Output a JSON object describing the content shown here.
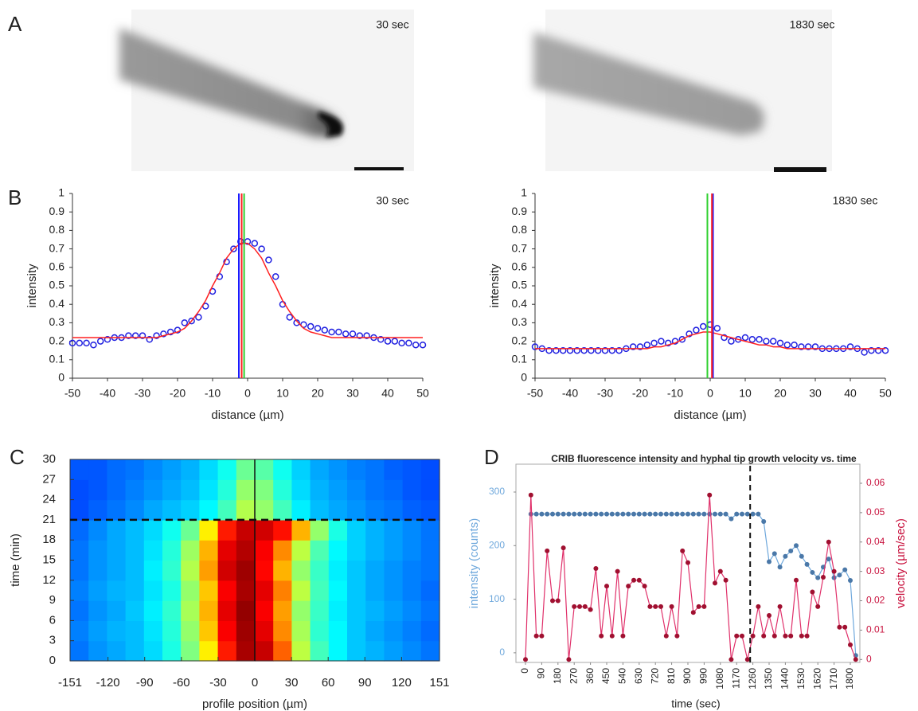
{
  "panel_labels": [
    "A",
    "B",
    "C",
    "D"
  ],
  "images": [
    {
      "label": "30 sec"
    },
    {
      "label": "1830 sec"
    }
  ],
  "chart_data": [
    {
      "type": "line",
      "annotation": "30 sec",
      "xlabel": "distance (µm)",
      "ylabel": "intensity",
      "x": [
        -50,
        -48,
        -46,
        -44,
        -42,
        -40,
        -38,
        -36,
        -34,
        -32,
        -30,
        -28,
        -26,
        -24,
        -22,
        -20,
        -18,
        -16,
        -14,
        -12,
        -10,
        -8,
        -6,
        -4,
        -2,
        0,
        2,
        4,
        6,
        8,
        10,
        12,
        14,
        16,
        18,
        20,
        22,
        24,
        26,
        28,
        30,
        32,
        34,
        36,
        38,
        40,
        42,
        44,
        46,
        48,
        50
      ],
      "series": [
        {
          "color": "#2020e0",
          "style": "markers",
          "values": [
            0.19,
            0.19,
            0.19,
            0.18,
            0.2,
            0.21,
            0.22,
            0.22,
            0.23,
            0.23,
            0.23,
            0.21,
            0.23,
            0.24,
            0.25,
            0.26,
            0.3,
            0.31,
            0.33,
            0.39,
            0.47,
            0.55,
            0.63,
            0.7,
            0.74,
            0.74,
            0.73,
            0.7,
            0.64,
            0.55,
            0.4,
            0.33,
            0.3,
            0.29,
            0.28,
            0.27,
            0.26,
            0.25,
            0.25,
            0.24,
            0.24,
            0.23,
            0.23,
            0.22,
            0.21,
            0.2,
            0.2,
            0.19,
            0.19,
            0.18,
            0.18
          ]
        },
        {
          "color": "#ff2020",
          "style": "line",
          "values": [
            0.22,
            0.22,
            0.22,
            0.22,
            0.22,
            0.22,
            0.22,
            0.22,
            0.22,
            0.22,
            0.22,
            0.22,
            0.22,
            0.23,
            0.24,
            0.25,
            0.27,
            0.31,
            0.36,
            0.42,
            0.5,
            0.57,
            0.65,
            0.7,
            0.73,
            0.73,
            0.7,
            0.65,
            0.57,
            0.5,
            0.42,
            0.36,
            0.31,
            0.27,
            0.25,
            0.24,
            0.23,
            0.22,
            0.22,
            0.22,
            0.22,
            0.22,
            0.22,
            0.22,
            0.22,
            0.22,
            0.22,
            0.22,
            0.22,
            0.22,
            0.22
          ]
        }
      ],
      "vlines": [
        {
          "x": -2.5,
          "color": "#1a1aff"
        },
        {
          "x": -1,
          "color": "#30d030"
        },
        {
          "x": -1.7,
          "color": "#ff2020"
        }
      ],
      "xlim": [
        -50,
        50
      ],
      "xticks": [
        -50,
        -40,
        -30,
        -20,
        -10,
        0,
        10,
        20,
        30,
        40,
        50
      ],
      "ylim": [
        0,
        1
      ],
      "yticks": [
        0,
        0.1,
        0.2,
        0.3,
        0.4,
        0.5,
        0.6,
        0.7,
        0.8,
        0.9,
        1
      ]
    },
    {
      "type": "line",
      "annotation": "1830 sec",
      "xlabel": "distance (µm)",
      "ylabel": "intensity",
      "x": [
        -50,
        -48,
        -46,
        -44,
        -42,
        -40,
        -38,
        -36,
        -34,
        -32,
        -30,
        -28,
        -26,
        -24,
        -22,
        -20,
        -18,
        -16,
        -14,
        -12,
        -10,
        -8,
        -6,
        -4,
        -2,
        0,
        2,
        4,
        6,
        8,
        10,
        12,
        14,
        16,
        18,
        20,
        22,
        24,
        26,
        28,
        30,
        32,
        34,
        36,
        38,
        40,
        42,
        44,
        46,
        48,
        50
      ],
      "series": [
        {
          "color": "#2020e0",
          "style": "markers",
          "values": [
            0.17,
            0.16,
            0.15,
            0.15,
            0.15,
            0.15,
            0.15,
            0.15,
            0.15,
            0.15,
            0.15,
            0.15,
            0.15,
            0.16,
            0.17,
            0.17,
            0.18,
            0.19,
            0.2,
            0.19,
            0.2,
            0.21,
            0.24,
            0.26,
            0.28,
            0.29,
            0.27,
            0.22,
            0.2,
            0.21,
            0.22,
            0.21,
            0.21,
            0.2,
            0.2,
            0.19,
            0.18,
            0.18,
            0.17,
            0.17,
            0.17,
            0.16,
            0.16,
            0.16,
            0.16,
            0.17,
            0.16,
            0.14,
            0.15,
            0.15,
            0.15
          ]
        },
        {
          "color": "#ff2020",
          "style": "line",
          "values": [
            0.16,
            0.16,
            0.16,
            0.16,
            0.16,
            0.16,
            0.16,
            0.16,
            0.16,
            0.16,
            0.16,
            0.16,
            0.16,
            0.16,
            0.16,
            0.16,
            0.16,
            0.17,
            0.17,
            0.18,
            0.19,
            0.21,
            0.23,
            0.24,
            0.25,
            0.25,
            0.24,
            0.23,
            0.22,
            0.21,
            0.2,
            0.19,
            0.18,
            0.18,
            0.17,
            0.17,
            0.16,
            0.16,
            0.16,
            0.16,
            0.16,
            0.16,
            0.16,
            0.16,
            0.16,
            0.16,
            0.16,
            0.16,
            0.16,
            0.16,
            0.16
          ]
        }
      ],
      "vlines": [
        {
          "x": -0.8,
          "color": "#30d030"
        },
        {
          "x": 0.8,
          "color": "#1a1aff"
        },
        {
          "x": 0.5,
          "color": "#ff2020"
        }
      ],
      "xlim": [
        -50,
        50
      ],
      "xticks": [
        -50,
        -40,
        -30,
        -20,
        -10,
        0,
        10,
        20,
        30,
        40,
        50
      ],
      "ylim": [
        0,
        1
      ],
      "yticks": [
        0,
        0.1,
        0.2,
        0.3,
        0.4,
        0.5,
        0.6,
        0.7,
        0.8,
        0.9,
        1
      ]
    },
    {
      "type": "heatmap",
      "colormap": "jet",
      "xlabel": "profile position (µm)",
      "ylabel": "time (min)",
      "values": [
        [
          0.24,
          0.27,
          0.29,
          0.31,
          0.34,
          0.4,
          0.5,
          0.64,
          0.85,
          0.96,
          0.93,
          0.78,
          0.56,
          0.44,
          0.37,
          0.32,
          0.3,
          0.28,
          0.26,
          0.24
        ],
        [
          0.25,
          0.28,
          0.3,
          0.31,
          0.35,
          0.41,
          0.52,
          0.68,
          0.88,
          0.97,
          0.9,
          0.74,
          0.54,
          0.42,
          0.37,
          0.32,
          0.29,
          0.27,
          0.25,
          0.23
        ],
        [
          0.24,
          0.27,
          0.29,
          0.32,
          0.36,
          0.42,
          0.54,
          0.7,
          0.9,
          0.98,
          0.88,
          0.72,
          0.52,
          0.43,
          0.36,
          0.32,
          0.3,
          0.28,
          0.26,
          0.24
        ],
        [
          0.25,
          0.28,
          0.3,
          0.31,
          0.35,
          0.4,
          0.52,
          0.68,
          0.88,
          0.96,
          0.9,
          0.75,
          0.56,
          0.44,
          0.37,
          0.32,
          0.29,
          0.27,
          0.25,
          0.23
        ],
        [
          0.24,
          0.27,
          0.29,
          0.31,
          0.36,
          0.42,
          0.55,
          0.72,
          0.92,
          0.97,
          0.87,
          0.7,
          0.52,
          0.43,
          0.36,
          0.32,
          0.29,
          0.27,
          0.25,
          0.24
        ],
        [
          0.24,
          0.27,
          0.29,
          0.31,
          0.35,
          0.41,
          0.53,
          0.7,
          0.9,
          0.95,
          0.88,
          0.74,
          0.56,
          0.45,
          0.37,
          0.33,
          0.3,
          0.28,
          0.26,
          0.24
        ],
        [
          0.23,
          0.26,
          0.29,
          0.31,
          0.34,
          0.39,
          0.48,
          0.64,
          0.85,
          0.93,
          0.92,
          0.86,
          0.7,
          0.52,
          0.4,
          0.33,
          0.3,
          0.28,
          0.26,
          0.24
        ],
        [
          0.2,
          0.22,
          0.24,
          0.26,
          0.29,
          0.31,
          0.33,
          0.37,
          0.44,
          0.55,
          0.52,
          0.44,
          0.36,
          0.31,
          0.29,
          0.27,
          0.25,
          0.24,
          0.22,
          0.21
        ],
        [
          0.2,
          0.21,
          0.23,
          0.25,
          0.27,
          0.29,
          0.31,
          0.35,
          0.41,
          0.52,
          0.5,
          0.41,
          0.34,
          0.3,
          0.28,
          0.26,
          0.24,
          0.23,
          0.21,
          0.2
        ],
        [
          0.21,
          0.21,
          0.23,
          0.24,
          0.26,
          0.28,
          0.3,
          0.34,
          0.39,
          0.48,
          0.46,
          0.39,
          0.33,
          0.29,
          0.27,
          0.25,
          0.24,
          0.22,
          0.21,
          0.2
        ]
      ],
      "vlines": [
        {
          "x": 0
        }
      ],
      "hlines": [
        {
          "y": 21
        }
      ],
      "xlim": [
        -151,
        151
      ],
      "xticks": [
        -151,
        -120,
        -90,
        -60,
        -30,
        0,
        30,
        60,
        90,
        120,
        151
      ],
      "ylim": [
        0,
        30
      ],
      "yticks": [
        0,
        3,
        6,
        9,
        12,
        15,
        18,
        21,
        24,
        27,
        30
      ]
    },
    {
      "type": "dual-line",
      "title": "CRIB fluorescence intensity and hyphal tip growth velocity vs. time",
      "xlabel": "time (sec)",
      "ylabel": "intensity (counts)",
      "y2label": "velocity (µm/sec)",
      "x": [
        0,
        30,
        60,
        90,
        120,
        150,
        180,
        210,
        240,
        270,
        300,
        330,
        360,
        390,
        420,
        450,
        480,
        510,
        540,
        570,
        600,
        630,
        660,
        690,
        720,
        750,
        780,
        810,
        840,
        870,
        900,
        930,
        960,
        990,
        1020,
        1050,
        1080,
        1110,
        1140,
        1170,
        1200,
        1230,
        1260,
        1290,
        1320,
        1350,
        1380,
        1410,
        1440,
        1470,
        1500,
        1530,
        1560,
        1590,
        1620,
        1650,
        1680,
        1710,
        1740,
        1770,
        1800,
        1830
      ],
      "series": [
        {
          "color": "#6fa8dc",
          "marker": "#4a78a8",
          "values": [
            null,
            259,
            259,
            259,
            259,
            259,
            259,
            259,
            259,
            259,
            259,
            259,
            259,
            259,
            259,
            259,
            259,
            259,
            259,
            259,
            259,
            259,
            259,
            259,
            259,
            259,
            259,
            259,
            259,
            259,
            259,
            259,
            259,
            259,
            259,
            259,
            259,
            259,
            250,
            259,
            259,
            259,
            259,
            259,
            245,
            170,
            185,
            160,
            180,
            190,
            200,
            180,
            165,
            150,
            140,
            160,
            175,
            140,
            145,
            155,
            135,
            -5
          ]
        },
        {
          "color": "#e0306a",
          "marker": "#a01030",
          "axis": "y2",
          "values": [
            0,
            0.056,
            0.008,
            0.008,
            0.037,
            0.02,
            0.02,
            0.038,
            0,
            0.018,
            0.018,
            0.018,
            0.017,
            0.031,
            0.008,
            0.025,
            0.008,
            0.03,
            0.008,
            0.025,
            0.027,
            0.027,
            0.025,
            0.018,
            0.018,
            0.018,
            0.008,
            0.018,
            0.008,
            0.037,
            0.033,
            0.016,
            0.018,
            0.018,
            0.056,
            0.026,
            0.03,
            0.027,
            0,
            0.008,
            0.008,
            0,
            0.008,
            0.018,
            0.008,
            0.015,
            0.008,
            0.018,
            0.008,
            0.008,
            0.027,
            0.008,
            0.008,
            0.023,
            0.018,
            0.028,
            0.04,
            0.03,
            0.011,
            0.011,
            0.005,
            0
          ]
        }
      ],
      "vlines": [
        {
          "x": 1245
        }
      ],
      "xlim": [
        -53,
        1853
      ],
      "xticks": [
        0,
        90,
        180,
        270,
        360,
        450,
        540,
        630,
        720,
        810,
        900,
        990,
        1080,
        1170,
        1260,
        1350,
        1440,
        1530,
        1620,
        1710,
        1800
      ],
      "ylim": [
        -18,
        352
      ],
      "yticks": [
        0,
        100,
        200,
        300
      ],
      "y2lim": [
        -0.001,
        0.0665
      ],
      "y2ticks": [
        0,
        0.01,
        0.02,
        0.03,
        0.04,
        0.05,
        0.06
      ],
      "ycolor": "#6fa8dc",
      "y2color": "#c8103c"
    }
  ]
}
